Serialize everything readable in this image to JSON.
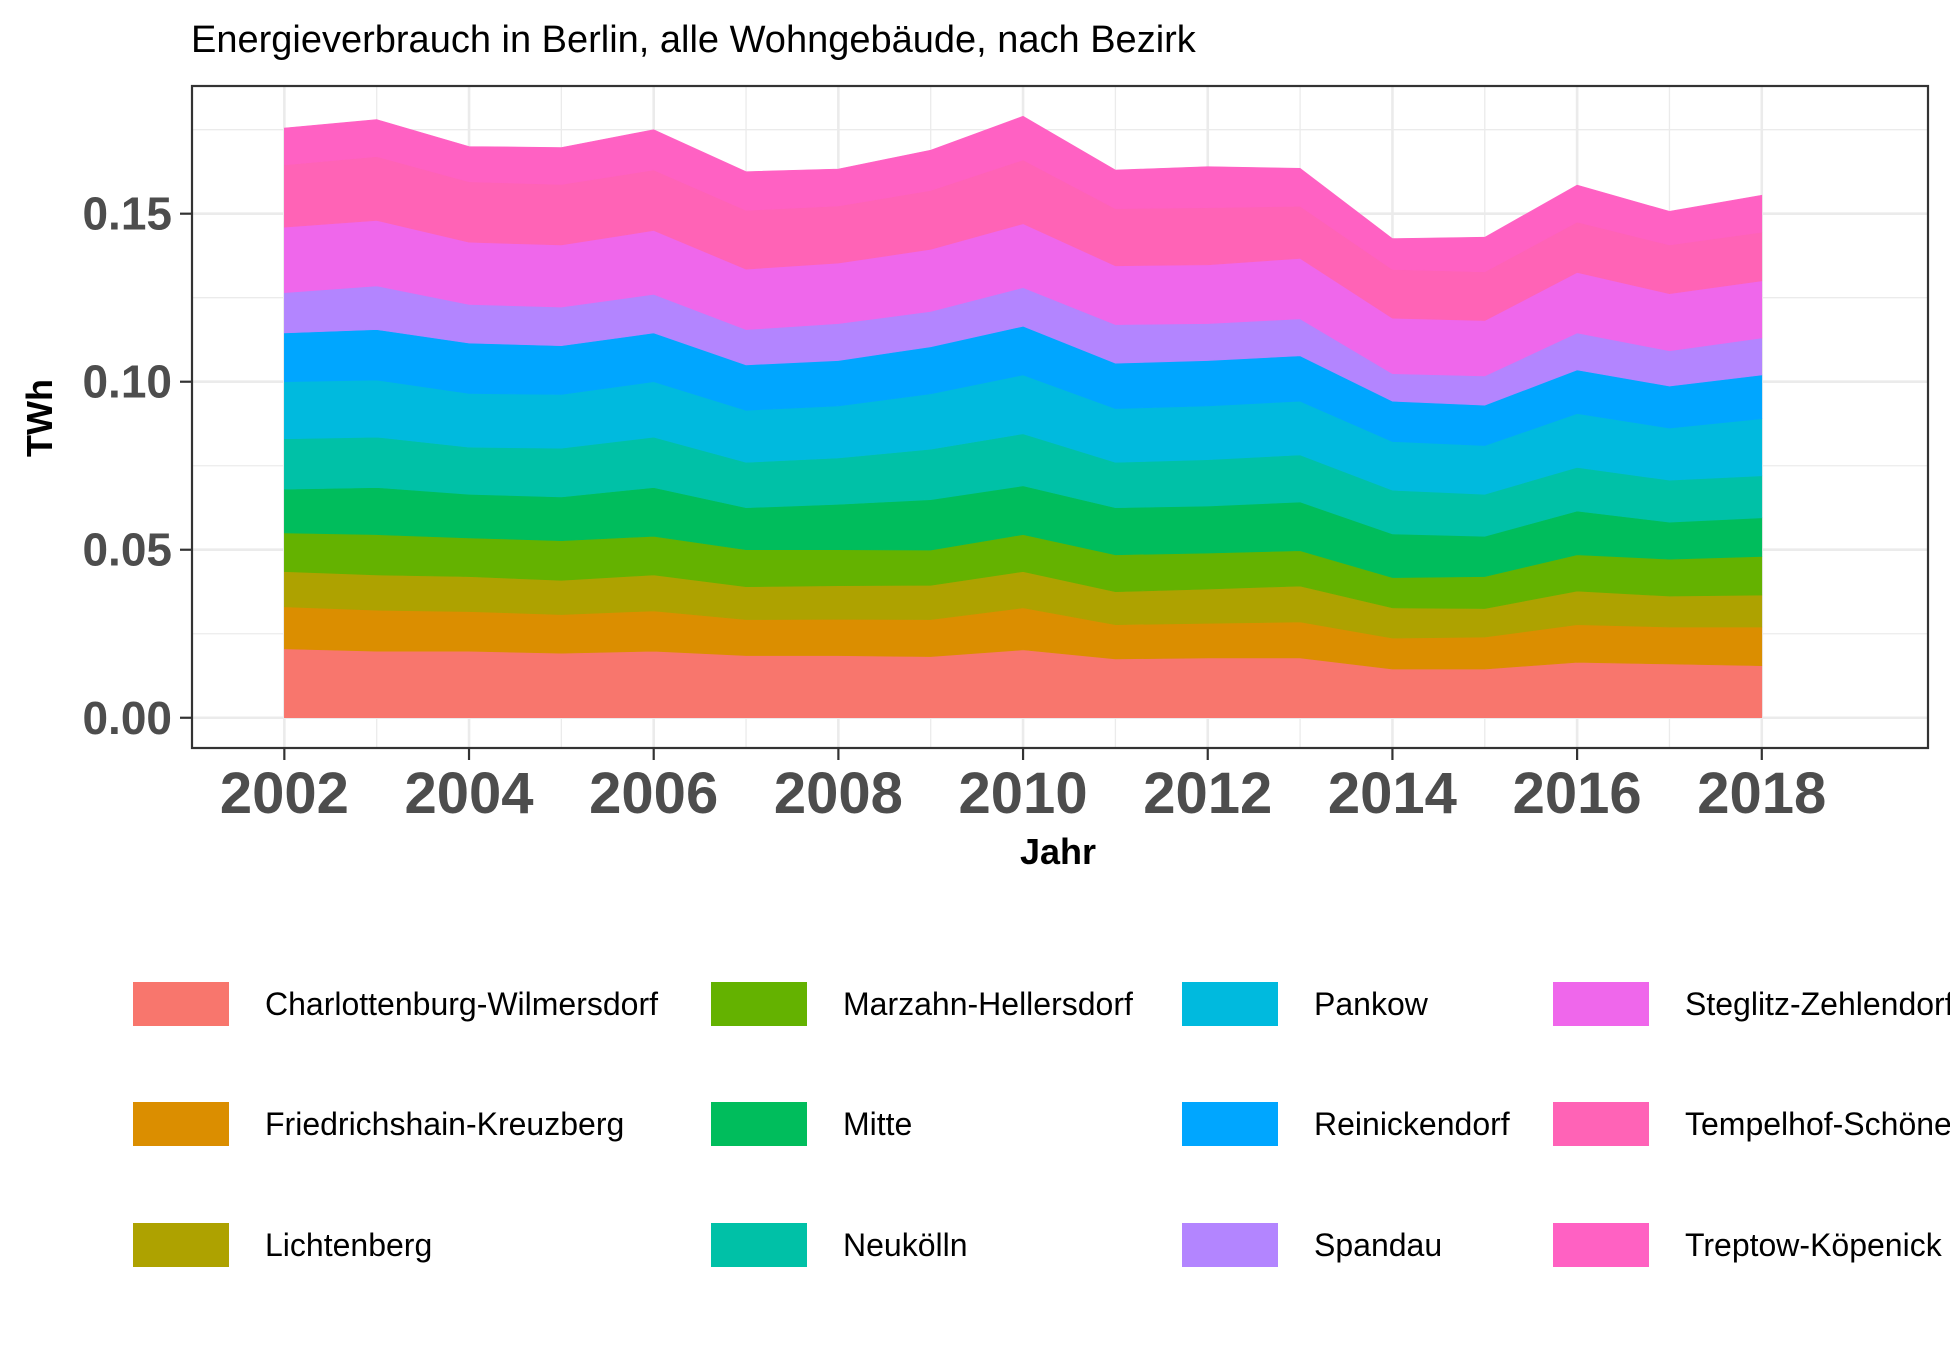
{
  "chart_data": {
    "type": "area",
    "stacked": true,
    "title": "Energieverbrauch in Berlin, alle Wohngebäude, nach Bezirk",
    "xlabel": "Jahr",
    "ylabel": "TWh",
    "xlim": [
      2001,
      2019.8
    ],
    "ylim": [
      -0.009,
      0.188
    ],
    "x_ticks": [
      2002,
      2004,
      2006,
      2008,
      2010,
      2012,
      2014,
      2016,
      2018
    ],
    "x_tick_labels": [
      "2002",
      "2004",
      "2006",
      "2008",
      "2010",
      "2012",
      "2014",
      "2016",
      "2018"
    ],
    "y_ticks": [
      0.0,
      0.05,
      0.1,
      0.15
    ],
    "y_tick_labels": [
      "0.00",
      "0.05",
      "0.10",
      "0.15"
    ],
    "grid": true,
    "legend_position": "bottom",
    "x": [
      2002,
      2003,
      2004,
      2005,
      2006,
      2007,
      2008,
      2009,
      2010,
      2011,
      2012,
      2013,
      2014,
      2015,
      2016,
      2017,
      2018
    ],
    "series": [
      {
        "name": "Charlottenburg-Wilmersdorf",
        "color": "#F8766D",
        "values": [
          0.0205,
          0.0198,
          0.0198,
          0.0192,
          0.0198,
          0.0185,
          0.0185,
          0.0182,
          0.0202,
          0.0175,
          0.0178,
          0.0178,
          0.0145,
          0.0145,
          0.0165,
          0.016,
          0.0155
        ]
      },
      {
        "name": "Friedrichshain-Kreuzberg",
        "color": "#DB8E00",
        "values": [
          0.0125,
          0.0122,
          0.0118,
          0.0115,
          0.012,
          0.0107,
          0.0108,
          0.011,
          0.0125,
          0.0102,
          0.0103,
          0.0107,
          0.0092,
          0.0095,
          0.0112,
          0.011,
          0.0115
        ]
      },
      {
        "name": "Lichtenberg",
        "color": "#AEA200",
        "values": [
          0.0105,
          0.0105,
          0.0104,
          0.0102,
          0.0107,
          0.0098,
          0.01,
          0.0102,
          0.0108,
          0.0098,
          0.0102,
          0.0107,
          0.009,
          0.0085,
          0.01,
          0.0092,
          0.0095
        ]
      },
      {
        "name": "Marzahn-Hellersdorf",
        "color": "#64B200",
        "values": [
          0.0115,
          0.012,
          0.0115,
          0.0118,
          0.0115,
          0.011,
          0.0107,
          0.0105,
          0.011,
          0.011,
          0.0107,
          0.0105,
          0.009,
          0.0095,
          0.0108,
          0.011,
          0.0115
        ]
      },
      {
        "name": "Mitte",
        "color": "#00BD5C",
        "values": [
          0.013,
          0.014,
          0.013,
          0.013,
          0.0145,
          0.0125,
          0.0135,
          0.015,
          0.0145,
          0.014,
          0.014,
          0.0145,
          0.013,
          0.012,
          0.013,
          0.011,
          0.0115
        ]
      },
      {
        "name": "Neukölln",
        "color": "#00C1A7",
        "values": [
          0.015,
          0.015,
          0.014,
          0.0145,
          0.015,
          0.0135,
          0.0138,
          0.015,
          0.0155,
          0.0135,
          0.0138,
          0.014,
          0.013,
          0.0125,
          0.013,
          0.0125,
          0.0125
        ]
      },
      {
        "name": "Pankow",
        "color": "#00BADE",
        "values": [
          0.017,
          0.017,
          0.016,
          0.016,
          0.0165,
          0.0155,
          0.0155,
          0.0165,
          0.0175,
          0.016,
          0.016,
          0.016,
          0.0145,
          0.0145,
          0.016,
          0.0155,
          0.017
        ]
      },
      {
        "name": "Reinickendorf",
        "color": "#00A6FF",
        "values": [
          0.0145,
          0.015,
          0.015,
          0.0145,
          0.0145,
          0.0135,
          0.0135,
          0.014,
          0.0145,
          0.0135,
          0.0135,
          0.0135,
          0.012,
          0.012,
          0.013,
          0.0125,
          0.013
        ]
      },
      {
        "name": "Spandau",
        "color": "#B385FF",
        "values": [
          0.012,
          0.013,
          0.0115,
          0.0115,
          0.0115,
          0.0105,
          0.011,
          0.0105,
          0.0115,
          0.0115,
          0.011,
          0.011,
          0.0082,
          0.0087,
          0.011,
          0.0105,
          0.011
        ]
      },
      {
        "name": "Steglitz-Zehlendorf",
        "color": "#EF67EB",
        "values": [
          0.0195,
          0.0195,
          0.0185,
          0.0185,
          0.019,
          0.018,
          0.018,
          0.0185,
          0.019,
          0.0175,
          0.0175,
          0.018,
          0.0165,
          0.0165,
          0.018,
          0.017,
          0.017
        ]
      },
      {
        "name": "Tempelhof-Schöneberg",
        "color": "#FF63B6",
        "values": [
          0.0185,
          0.019,
          0.018,
          0.018,
          0.018,
          0.0175,
          0.017,
          0.0175,
          0.019,
          0.017,
          0.017,
          0.0155,
          0.0145,
          0.0145,
          0.015,
          0.0145,
          0.0145
        ]
      },
      {
        "name": "Treptow-Köpenick",
        "color": "#FF61C3",
        "values": [
          0.011,
          0.011,
          0.0105,
          0.011,
          0.012,
          0.0115,
          0.011,
          0.012,
          0.013,
          0.0115,
          0.0122,
          0.0113,
          0.0092,
          0.0103,
          0.011,
          0.01,
          0.011
        ]
      }
    ]
  }
}
